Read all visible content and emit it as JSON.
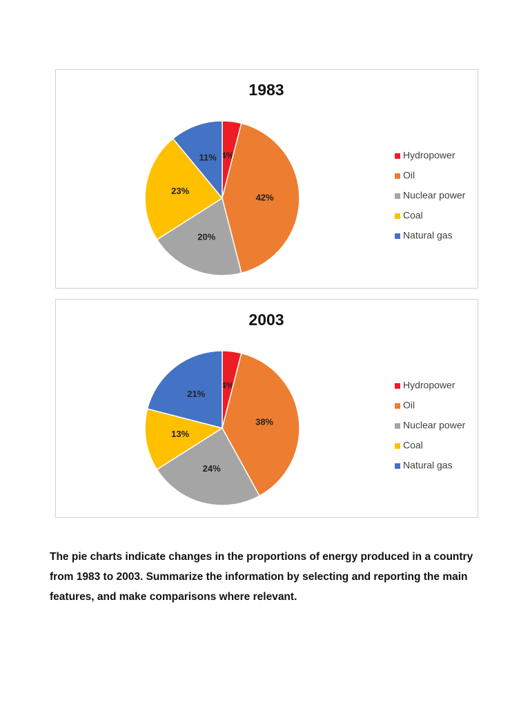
{
  "chart_data": [
    {
      "type": "pie",
      "title": "1983",
      "categories": [
        "Hydropower",
        "Oil",
        "Nuclear power",
        "Coal",
        "Natural gas"
      ],
      "values": [
        4,
        42,
        20,
        23,
        11
      ],
      "value_labels": [
        "4%",
        "42%",
        "20%",
        "23%",
        "11%"
      ],
      "colors": [
        "#ee1c25",
        "#ed7d31",
        "#a5a5a5",
        "#ffc000",
        "#4472c4"
      ],
      "legend": "right"
    },
    {
      "type": "pie",
      "title": "2003",
      "categories": [
        "Hydropower",
        "Oil",
        "Nuclear power",
        "Coal",
        "Natural gas"
      ],
      "values": [
        4,
        38,
        24,
        13,
        21
      ],
      "value_labels": [
        "4%",
        "38%",
        "24%",
        "13%",
        "21%"
      ],
      "colors": [
        "#ee1c25",
        "#ed7d31",
        "#a5a5a5",
        "#ffc000",
        "#4472c4"
      ],
      "legend": "right"
    }
  ],
  "task": "The pie charts indicate changes in the proportions of energy produced in a country from 1983 to 2003. Summarize the information by selecting and reporting the main features, and make comparisons where relevant."
}
